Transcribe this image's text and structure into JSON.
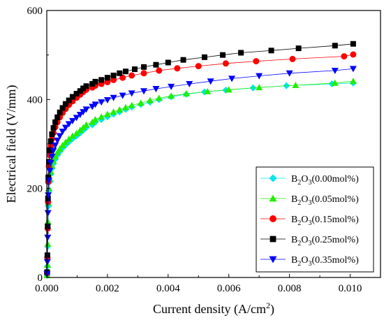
{
  "chart_data": {
    "type": "line",
    "xlabel": "Current density (A/cm",
    "xlabel_sup": "2",
    "xlabel_close": ")",
    "ylabel": "Electrical field (V/mm)",
    "xlim": [
      0,
      0.011
    ],
    "ylim": [
      0,
      600
    ],
    "xticks": [
      0.0,
      0.002,
      0.004,
      0.006,
      0.008,
      0.01
    ],
    "xtick_labels": [
      "0.000",
      "0.002",
      "0.004",
      "0.006",
      "0.008",
      "0.010"
    ],
    "yticks": [
      0,
      200,
      400,
      600
    ],
    "ytick_labels": [
      "0",
      "200",
      "400",
      "600"
    ],
    "legend_position": "bottom-right",
    "series": [
      {
        "name": "B2O3(0.00mol%)",
        "legend_parts": [
          "B",
          "2",
          "O",
          "3",
          "(0.00mol%)"
        ],
        "marker": "diamond",
        "color": "#00e5ee",
        "points": [
          [
            1e-05,
            5
          ],
          [
            2e-05,
            25
          ],
          [
            3e-05,
            70
          ],
          [
            4e-05,
            120
          ],
          [
            5e-05,
            160
          ],
          [
            7e-05,
            195
          ],
          [
            0.0001,
            215
          ],
          [
            0.00013,
            232
          ],
          [
            0.00017,
            245
          ],
          [
            0.00022,
            256
          ],
          [
            0.00028,
            266
          ],
          [
            0.00035,
            275
          ],
          [
            0.00043,
            283
          ],
          [
            0.00052,
            291
          ],
          [
            0.00062,
            298
          ],
          [
            0.00073,
            305
          ],
          [
            0.00085,
            312
          ],
          [
            0.00098,
            318
          ],
          [
            0.0011,
            325
          ],
          [
            0.0012,
            331
          ],
          [
            0.0013,
            337
          ],
          [
            0.0015,
            343
          ],
          [
            0.0016,
            349
          ],
          [
            0.0018,
            355
          ],
          [
            0.002,
            361
          ],
          [
            0.0022,
            367
          ],
          [
            0.0024,
            372
          ],
          [
            0.0026,
            378
          ],
          [
            0.0028,
            383
          ],
          [
            0.0031,
            389
          ],
          [
            0.0034,
            394
          ],
          [
            0.0037,
            400
          ],
          [
            0.0041,
            406
          ],
          [
            0.0046,
            412
          ],
          [
            0.0052,
            417
          ],
          [
            0.0059,
            421
          ],
          [
            0.0068,
            426
          ],
          [
            0.0079,
            431
          ],
          [
            0.0094,
            435
          ],
          [
            0.0101,
            437
          ]
        ]
      },
      {
        "name": "B2O3(0.05mol%)",
        "legend_parts": [
          "B",
          "2",
          "O",
          "3",
          "(0.05mol%)"
        ],
        "marker": "triangle-up",
        "color": "#22ee00",
        "points": [
          [
            1e-05,
            5
          ],
          [
            2e-05,
            28
          ],
          [
            3e-05,
            75
          ],
          [
            4e-05,
            125
          ],
          [
            5e-05,
            168
          ],
          [
            7e-05,
            200
          ],
          [
            0.0001,
            222
          ],
          [
            0.00013,
            238
          ],
          [
            0.00017,
            251
          ],
          [
            0.00022,
            262
          ],
          [
            0.00028,
            272
          ],
          [
            0.00035,
            281
          ],
          [
            0.00043,
            289
          ],
          [
            0.00052,
            297
          ],
          [
            0.00062,
            304
          ],
          [
            0.00073,
            311
          ],
          [
            0.00085,
            318
          ],
          [
            0.00098,
            324
          ],
          [
            0.0011,
            331
          ],
          [
            0.0012,
            337
          ],
          [
            0.0013,
            343
          ],
          [
            0.0015,
            349
          ],
          [
            0.0016,
            355
          ],
          [
            0.0018,
            361
          ],
          [
            0.002,
            367
          ],
          [
            0.0022,
            372
          ],
          [
            0.0024,
            377
          ],
          [
            0.0026,
            382
          ],
          [
            0.0028,
            387
          ],
          [
            0.0031,
            392
          ],
          [
            0.0034,
            398
          ],
          [
            0.0037,
            403
          ],
          [
            0.0041,
            408
          ],
          [
            0.0046,
            413
          ],
          [
            0.0053,
            418
          ],
          [
            0.006,
            422
          ],
          [
            0.007,
            427
          ],
          [
            0.0082,
            432
          ],
          [
            0.0095,
            437
          ],
          [
            0.0101,
            441
          ]
        ]
      },
      {
        "name": "B2O3(0.15mol%)",
        "legend_parts": [
          "B",
          "2",
          "O",
          "3",
          "(0.15mol%)"
        ],
        "marker": "circle",
        "color": "#ff0000",
        "points": [
          [
            1e-05,
            10
          ],
          [
            2e-05,
            45
          ],
          [
            3e-05,
            110
          ],
          [
            4e-05,
            170
          ],
          [
            5e-05,
            215
          ],
          [
            7e-05,
            250
          ],
          [
            0.0001,
            275
          ],
          [
            0.00013,
            295
          ],
          [
            0.00017,
            311
          ],
          [
            0.00022,
            325
          ],
          [
            0.00028,
            338
          ],
          [
            0.00035,
            349
          ],
          [
            0.00043,
            360
          ],
          [
            0.00052,
            370
          ],
          [
            0.00062,
            379
          ],
          [
            0.00073,
            388
          ],
          [
            0.00085,
            396
          ],
          [
            0.00098,
            404
          ],
          [
            0.0011,
            411
          ],
          [
            0.0012,
            417
          ],
          [
            0.0013,
            422
          ],
          [
            0.0015,
            427
          ],
          [
            0.0016,
            431
          ],
          [
            0.0018,
            435
          ],
          [
            0.002,
            439
          ],
          [
            0.0022,
            444
          ],
          [
            0.0025,
            449
          ],
          [
            0.0028,
            454
          ],
          [
            0.0032,
            459
          ],
          [
            0.0037,
            465
          ],
          [
            0.0043,
            470
          ],
          [
            0.005,
            475
          ],
          [
            0.0059,
            481
          ],
          [
            0.0069,
            486
          ],
          [
            0.0081,
            491
          ],
          [
            0.0098,
            497
          ],
          [
            0.0101,
            501
          ]
        ]
      },
      {
        "name": "B2O3(0.25mol%)",
        "legend_parts": [
          "B",
          "2",
          "O",
          "3",
          "(0.25mol%)"
        ],
        "marker": "square",
        "color": "#000000",
        "points": [
          [
            1e-05,
            12
          ],
          [
            2e-05,
            50
          ],
          [
            3e-05,
            115
          ],
          [
            4e-05,
            178
          ],
          [
            5e-05,
            225
          ],
          [
            7e-05,
            260
          ],
          [
            0.0001,
            286
          ],
          [
            0.00013,
            306
          ],
          [
            0.00017,
            322
          ],
          [
            0.00022,
            336
          ],
          [
            0.00028,
            349
          ],
          [
            0.00035,
            360
          ],
          [
            0.00043,
            371
          ],
          [
            0.00052,
            381
          ],
          [
            0.00062,
            390
          ],
          [
            0.00073,
            398
          ],
          [
            0.00085,
            406
          ],
          [
            0.00098,
            413
          ],
          [
            0.0011,
            419
          ],
          [
            0.0012,
            425
          ],
          [
            0.0013,
            430
          ],
          [
            0.0015,
            435
          ],
          [
            0.0016,
            440
          ],
          [
            0.0018,
            444
          ],
          [
            0.002,
            449
          ],
          [
            0.0022,
            454
          ],
          [
            0.0024,
            459
          ],
          [
            0.0026,
            463
          ],
          [
            0.0029,
            468
          ],
          [
            0.0032,
            473
          ],
          [
            0.0036,
            478
          ],
          [
            0.004,
            483
          ],
          [
            0.0045,
            489
          ],
          [
            0.0052,
            495
          ],
          [
            0.0058,
            500
          ],
          [
            0.0064,
            505
          ],
          [
            0.0074,
            510
          ],
          [
            0.0083,
            515
          ],
          [
            0.0095,
            521
          ],
          [
            0.0101,
            525
          ]
        ]
      },
      {
        "name": "B2O3(0.35mol%)",
        "legend_parts": [
          "B",
          "2",
          "O",
          "3",
          "(0.35mol%)"
        ],
        "marker": "triangle-down",
        "color": "#0000ff",
        "points": [
          [
            1e-05,
            8
          ],
          [
            2e-05,
            35
          ],
          [
            3e-05,
            90
          ],
          [
            4e-05,
            145
          ],
          [
            5e-05,
            185
          ],
          [
            7e-05,
            218
          ],
          [
            0.0001,
            240
          ],
          [
            0.00013,
            258
          ],
          [
            0.00017,
            272
          ],
          [
            0.00022,
            285
          ],
          [
            0.00028,
            297
          ],
          [
            0.00035,
            308
          ],
          [
            0.00043,
            318
          ],
          [
            0.00052,
            328
          ],
          [
            0.00062,
            337
          ],
          [
            0.00073,
            345
          ],
          [
            0.00085,
            352
          ],
          [
            0.00098,
            359
          ],
          [
            0.0011,
            366
          ],
          [
            0.0012,
            372
          ],
          [
            0.0013,
            378
          ],
          [
            0.0015,
            384
          ],
          [
            0.0016,
            389
          ],
          [
            0.0018,
            394
          ],
          [
            0.002,
            399
          ],
          [
            0.0022,
            404
          ],
          [
            0.0025,
            409
          ],
          [
            0.0028,
            414
          ],
          [
            0.0032,
            419
          ],
          [
            0.0036,
            424
          ],
          [
            0.0041,
            429
          ],
          [
            0.0047,
            435
          ],
          [
            0.0054,
            441
          ],
          [
            0.0061,
            447
          ],
          [
            0.007,
            453
          ],
          [
            0.008,
            459
          ],
          [
            0.0095,
            465
          ],
          [
            0.0101,
            469
          ]
        ]
      }
    ]
  }
}
